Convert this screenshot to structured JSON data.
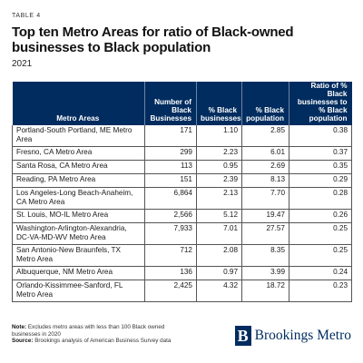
{
  "header": {
    "table_no": "TABLE 4",
    "title": "Top ten Metro Areas for ratio of Black-owned businesses to Black population",
    "year": "2021"
  },
  "table": {
    "columns": [
      "Metro Areas",
      "Number of Black Businesses",
      "% Black businesses",
      "% Black population",
      "Ratio of % Black businesses to % Black population"
    ],
    "rows": [
      {
        "metro": "Portland-South Portland, ME Metro Area",
        "count": "171",
        "pct_bus": "1.10",
        "pct_pop": "2.85",
        "ratio": "0.38"
      },
      {
        "metro": "Fresno, CA Metro Area",
        "count": "299",
        "pct_bus": "2.23",
        "pct_pop": "6.01",
        "ratio": "0.37"
      },
      {
        "metro": "Santa Rosa, CA Metro Area",
        "count": "113",
        "pct_bus": "0.95",
        "pct_pop": "2.69",
        "ratio": "0.35"
      },
      {
        "metro": "Reading, PA Metro Area",
        "count": "151",
        "pct_bus": "2.39",
        "pct_pop": "8.13",
        "ratio": "0.29"
      },
      {
        "metro": "Los Angeles-Long Beach-Anaheim, CA Metro Area",
        "count": "6,864",
        "pct_bus": "2.13",
        "pct_pop": "7.70",
        "ratio": "0.28"
      },
      {
        "metro": "St. Louis, MO-IL Metro Area",
        "count": "2,566",
        "pct_bus": "5.12",
        "pct_pop": "19.47",
        "ratio": "0.26"
      },
      {
        "metro": "Washington-Arlington-Alexandria, DC-VA-MD-WV Metro Area",
        "count": "7,933",
        "pct_bus": "7.01",
        "pct_pop": "27.57",
        "ratio": "0.25"
      },
      {
        "metro": "San Antonio-New Braunfels, TX Metro Area",
        "count": "712",
        "pct_bus": "2.08",
        "pct_pop": "8.35",
        "ratio": "0.25"
      },
      {
        "metro": "Albuquerque, NM Metro Area",
        "count": "136",
        "pct_bus": "0.97",
        "pct_pop": "3.99",
        "ratio": "0.24"
      },
      {
        "metro": "Orlando-Kissimmee-Sanford, FL Metro Area",
        "count": "2,425",
        "pct_bus": "4.32",
        "pct_pop": "18.72",
        "ratio": "0.23"
      }
    ]
  },
  "footer": {
    "note_label": "Note:",
    "note_text": "Excludes metro areas with less than 100 Black owned businesses in 2020",
    "source_label": "Source:",
    "source_text": "Brookings analysis of American Business Survey data",
    "brand_name": "Brookings Metro",
    "brand_letter": "B"
  },
  "colors": {
    "header_bg": "#002c5f",
    "brand": "#002c5f"
  }
}
